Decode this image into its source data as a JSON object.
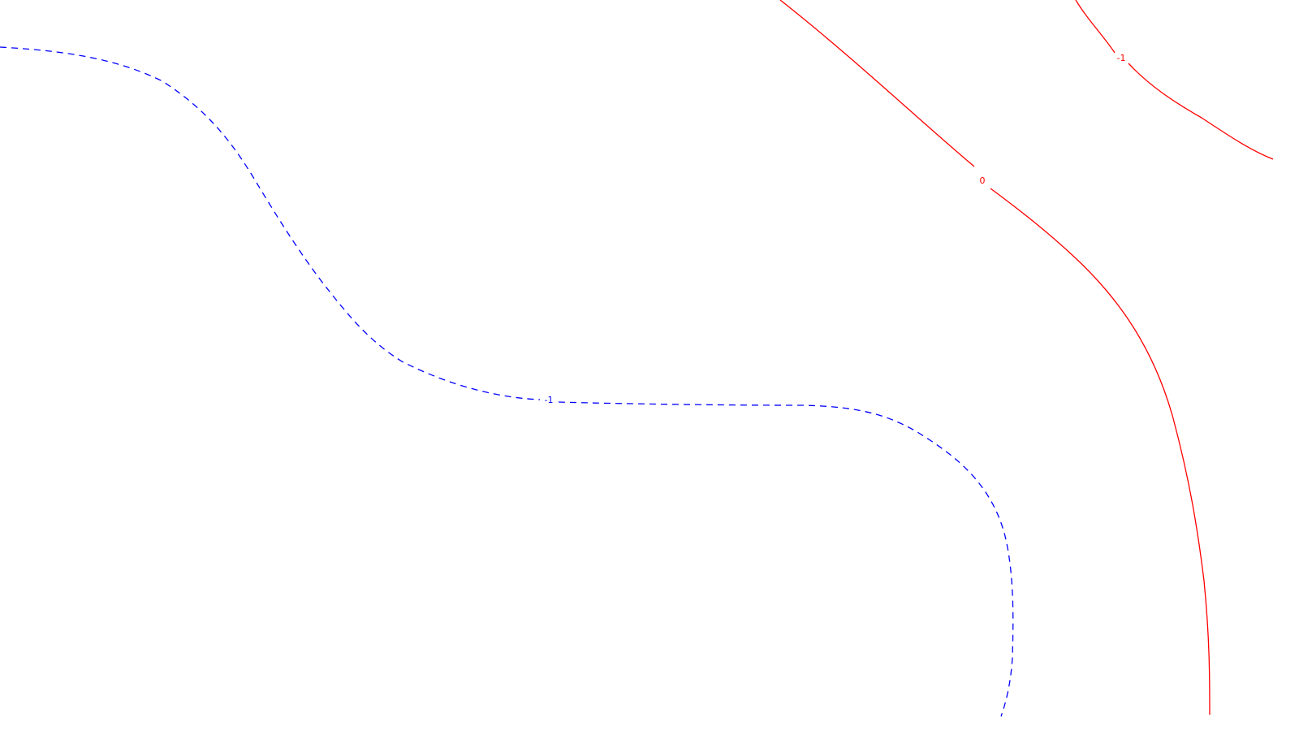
{
  "chart_data": {
    "type": "contour",
    "colors": {
      "background": "#ffffff",
      "red_line": "#ff0000",
      "blue_line": "#0000ff"
    },
    "contours": [
      {
        "id": "red-0",
        "level_label": "0",
        "color": "#ff0000",
        "style": "solid"
      },
      {
        "id": "red-neg1",
        "level_label": "-1",
        "color": "#ff0000",
        "style": "solid"
      },
      {
        "id": "blue-neg1",
        "level_label": "-1",
        "color": "#0000ff",
        "style": "dashed"
      }
    ]
  }
}
